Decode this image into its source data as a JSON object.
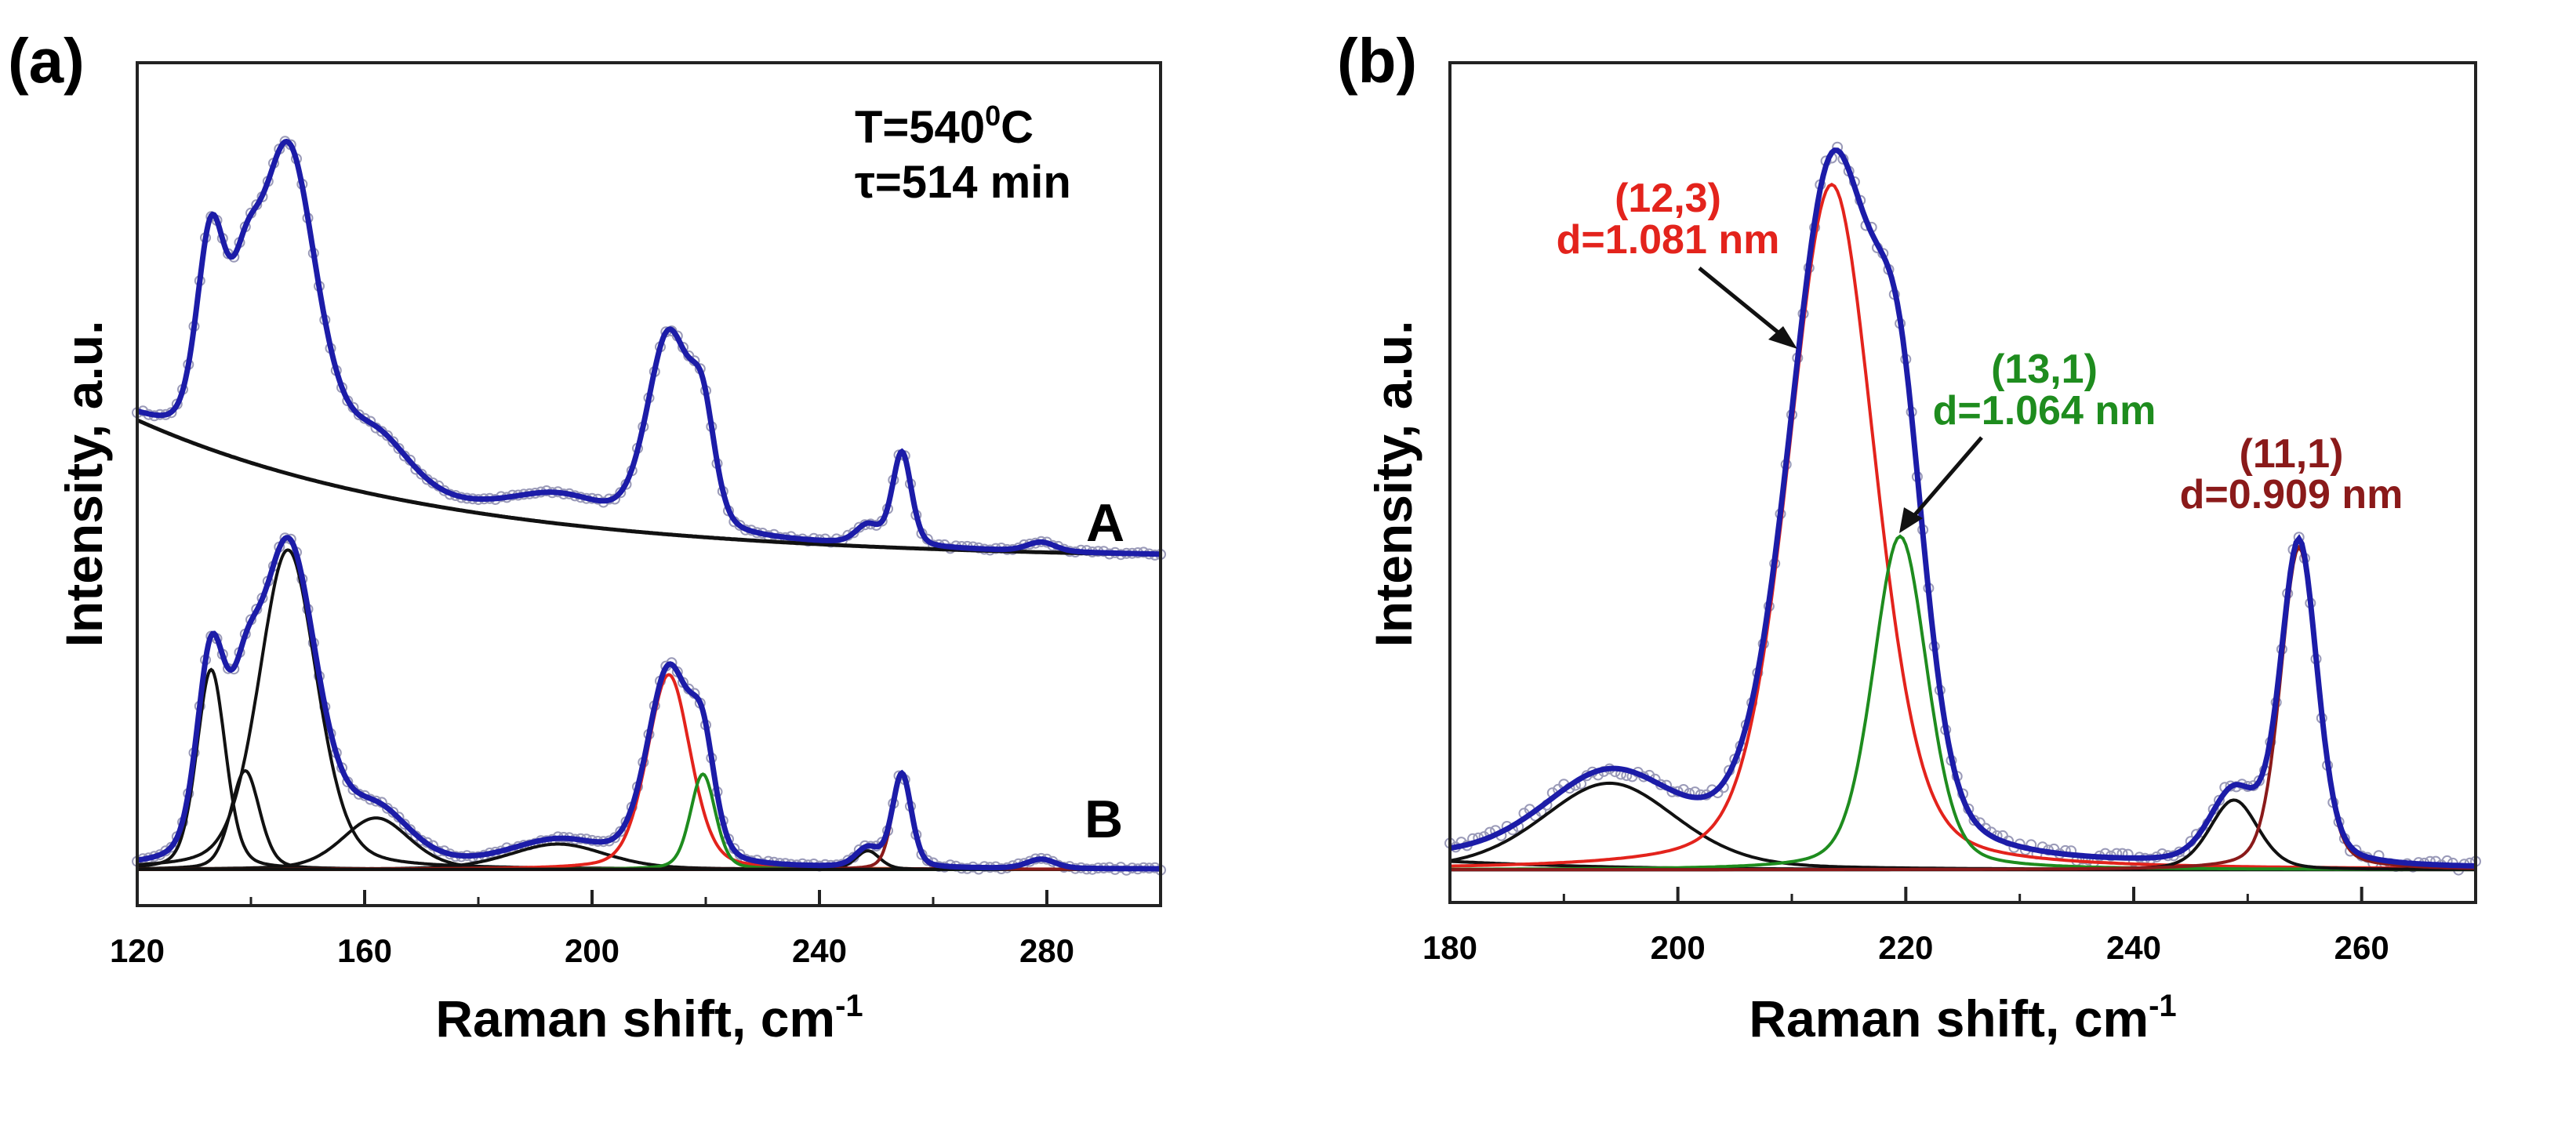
{
  "chart_data": [
    {
      "type": "line",
      "panel_label": "(a)",
      "xlabel": "Raman shift, cm",
      "xlabel_sup": "-1",
      "ylabel": "Intensity, a.u.",
      "xlim": [
        120,
        300
      ],
      "ylim": [
        0,
        100
      ],
      "xticks": [
        120,
        160,
        200,
        240,
        280
      ],
      "xticks_minor": [
        140,
        180,
        220,
        260,
        300
      ],
      "annotation": {
        "line1_pre": "T=540",
        "line1_sup": "0",
        "line1_post": "C",
        "line2": "τ=514 min"
      },
      "curve_labels": {
        "A": "A",
        "B": "B"
      },
      "eta": 0.3,
      "spectrum_A_baseline": {
        "offset": 41,
        "amplitude": 16.6,
        "decay": 55
      },
      "spectrum_B_offset": 4.3,
      "components": [
        {
          "center": 133,
          "height": 23.7,
          "hwhm": 3.0,
          "color": "#111111"
        },
        {
          "center": 139,
          "height": 11.7,
          "hwhm": 3.0,
          "color": "#111111"
        },
        {
          "center": 146.5,
          "height": 37.9,
          "hwhm": 6.0,
          "color": "#111111"
        },
        {
          "center": 162,
          "height": 6.1,
          "hwhm": 7.0,
          "color": "#111111"
        },
        {
          "center": 194,
          "height": 3.0,
          "hwhm": 10.0,
          "color": "#111111"
        },
        {
          "center": 213.5,
          "height": 23.1,
          "hwhm": 4.5,
          "color": "#e3231c"
        },
        {
          "center": 219.5,
          "height": 11.3,
          "hwhm": 2.6,
          "color": "#1e8c1e"
        },
        {
          "center": 248.5,
          "height": 2.2,
          "hwhm": 2.5,
          "color": "#111111"
        },
        {
          "center": 254.5,
          "height": 11.1,
          "hwhm": 2.0,
          "color": "#8a1a1a"
        },
        {
          "center": 279,
          "height": 1.1,
          "hwhm": 3.0,
          "color": "#111111"
        }
      ],
      "fit_color": "#1c1ca8",
      "points_color": "#9a9ab8"
    },
    {
      "type": "line",
      "panel_label": "(b)",
      "xlabel": "Raman shift, cm",
      "xlabel_sup": "-1",
      "ylabel": "Intensity, a.u.",
      "xlim": [
        180,
        270
      ],
      "ylim": [
        0,
        100
      ],
      "xticks": [
        180,
        200,
        220,
        240,
        260
      ],
      "xticks_minor": [
        190,
        210,
        230,
        250,
        270
      ],
      "eta": 0.3,
      "spectrum_offset": 3.9,
      "components": [
        {
          "center": 160,
          "height": 2.0,
          "hwhm": 20.0,
          "color": "#111111"
        },
        {
          "center": 194,
          "height": 10.3,
          "hwhm": 7.0,
          "color": "#111111"
        },
        {
          "center": 213.5,
          "height": 81.6,
          "hwhm": 4.5,
          "color": "#e3231c"
        },
        {
          "center": 219.5,
          "height": 39.7,
          "hwhm": 2.8,
          "color": "#1e8c1e"
        },
        {
          "center": 248.8,
          "height": 8.3,
          "hwhm": 2.5,
          "color": "#111111"
        },
        {
          "center": 254.5,
          "height": 38.4,
          "hwhm": 1.9,
          "color": "#8a1a1a"
        }
      ],
      "fit_color": "#1c1ca8",
      "points_color": "#9a9ab8",
      "annotations": [
        {
          "chirality": "(12,3)",
          "diameter": "d=1.081 nm",
          "color": "#e3231c"
        },
        {
          "chirality": "(13,1)",
          "diameter": "d=1.064 nm",
          "color": "#1e8c1e"
        },
        {
          "chirality": "(11,1)",
          "diameter": "d=0.909 nm",
          "color": "#8a1a1a"
        }
      ]
    }
  ]
}
